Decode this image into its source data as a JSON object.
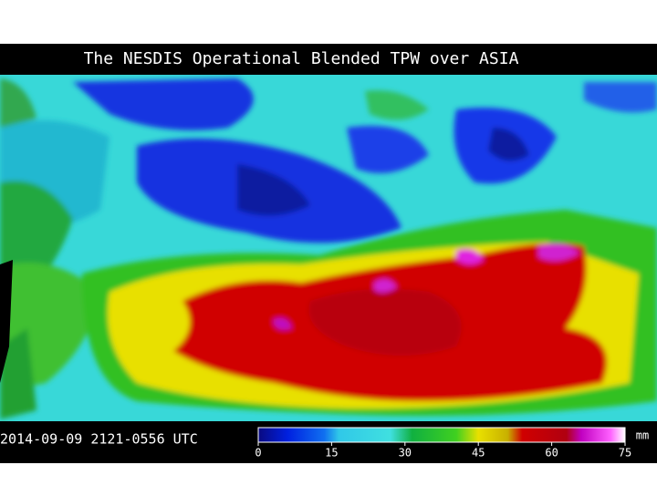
{
  "header": {
    "title": "The NESDIS Operational Blended TPW over ASIA"
  },
  "footer": {
    "timestamp": "2014-09-09  2121-0556  UTC"
  },
  "colorbar": {
    "unit": "mm",
    "lim": [
      0,
      75
    ],
    "ticks": [
      0,
      15,
      30,
      45,
      60,
      75
    ]
  }
}
